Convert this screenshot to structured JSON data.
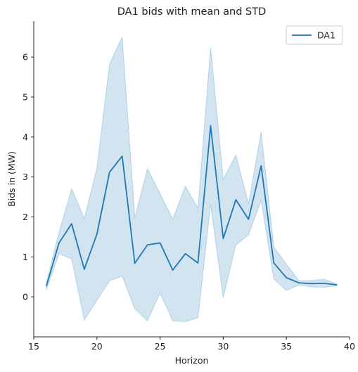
{
  "chart_data": {
    "type": "line",
    "title": "DA1 bids with mean and STD",
    "xlabel": "Horizon",
    "ylabel": "Bids in (MW)",
    "xlim": [
      15,
      40
    ],
    "ylim": [
      -1.0,
      6.9
    ],
    "xticks": [
      15,
      20,
      25,
      30,
      35,
      40
    ],
    "yticks": [
      0,
      1,
      2,
      3,
      4,
      5,
      6
    ],
    "grid": false,
    "legend_position": "upper-right",
    "x": [
      16,
      17,
      18,
      19,
      20,
      21,
      22,
      23,
      24,
      25,
      26,
      27,
      28,
      29,
      30,
      31,
      32,
      33,
      34,
      35,
      36,
      37,
      38,
      39
    ],
    "series": [
      {
        "name": "DA1",
        "color": "#1f77b4",
        "values": [
          0.27,
          1.35,
          1.83,
          0.69,
          1.57,
          3.12,
          3.52,
          0.84,
          1.3,
          1.35,
          0.67,
          1.08,
          0.85,
          4.28,
          1.46,
          2.43,
          1.94,
          3.28,
          0.85,
          0.48,
          0.35,
          0.33,
          0.34,
          0.3
        ],
        "band_lower": [
          0.18,
          1.08,
          0.95,
          -0.58,
          -0.08,
          0.4,
          0.52,
          -0.3,
          -0.6,
          0.1,
          -0.6,
          -0.62,
          -0.52,
          2.32,
          -0.02,
          1.3,
          1.55,
          2.42,
          0.45,
          0.16,
          0.3,
          0.25,
          0.24,
          0.28
        ],
        "band_upper": [
          0.36,
          1.62,
          2.71,
          1.96,
          3.22,
          5.82,
          6.5,
          1.98,
          3.21,
          2.58,
          1.94,
          2.77,
          2.22,
          6.24,
          2.94,
          3.55,
          2.33,
          4.13,
          1.25,
          0.82,
          0.4,
          0.41,
          0.44,
          0.32
        ]
      }
    ]
  }
}
